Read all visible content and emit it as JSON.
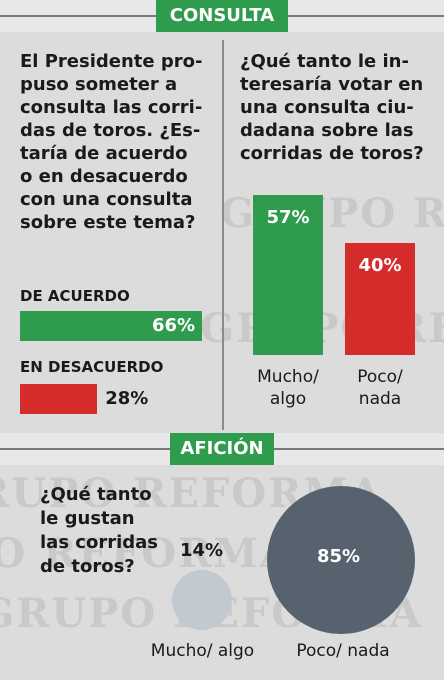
{
  "colors": {
    "green": "#2f9b4c",
    "red": "#d62b2b",
    "dark_circle": "#56626e",
    "light_circle": "#c3c9d0"
  },
  "sections": {
    "consulta": "CONSULTA",
    "aficion": "AFICIÓN"
  },
  "q1": {
    "lines": [
      "El Presidente pro-",
      "puso someter a",
      "consulta las corri-",
      "das de toros. ¿Es-",
      "taría de acuerdo",
      "o en desacuerdo",
      "con una consulta",
      "sobre este tema?"
    ]
  },
  "q2": {
    "lines": [
      "¿Qué tanto le in-",
      "teresaría votar en",
      "una consulta ciu-",
      "dadana sobre las",
      "corridas de toros?"
    ]
  },
  "q3": {
    "lines": [
      "¿Qué tanto",
      "le gustan",
      "las corridas",
      "de toros?"
    ]
  },
  "watermark": "GRUPO REFORMA",
  "chart_data": [
    {
      "type": "bar",
      "orientation": "horizontal",
      "categories": [
        "DE ACUERDO",
        "EN DESACUERDO"
      ],
      "values": [
        66,
        28
      ],
      "labels": [
        "66%",
        "28%"
      ],
      "colors": [
        "#2f9b4c",
        "#d62b2b"
      ]
    },
    {
      "type": "bar",
      "orientation": "vertical",
      "categories": [
        "Mucho/ algo",
        "Poco/ nada"
      ],
      "category_lines": [
        [
          "Mucho/",
          "algo"
        ],
        [
          "Poco/",
          "nada"
        ]
      ],
      "values": [
        57,
        40
      ],
      "labels": [
        "57%",
        "40%"
      ],
      "colors": [
        "#2f9b4c",
        "#d62b2b"
      ]
    },
    {
      "type": "bubble",
      "categories": [
        "Mucho/ algo",
        "Poco/ nada"
      ],
      "values": [
        14,
        85
      ],
      "labels": [
        "14%",
        "85%"
      ],
      "colors": [
        "#c3c9d0",
        "#56626e"
      ]
    }
  ]
}
